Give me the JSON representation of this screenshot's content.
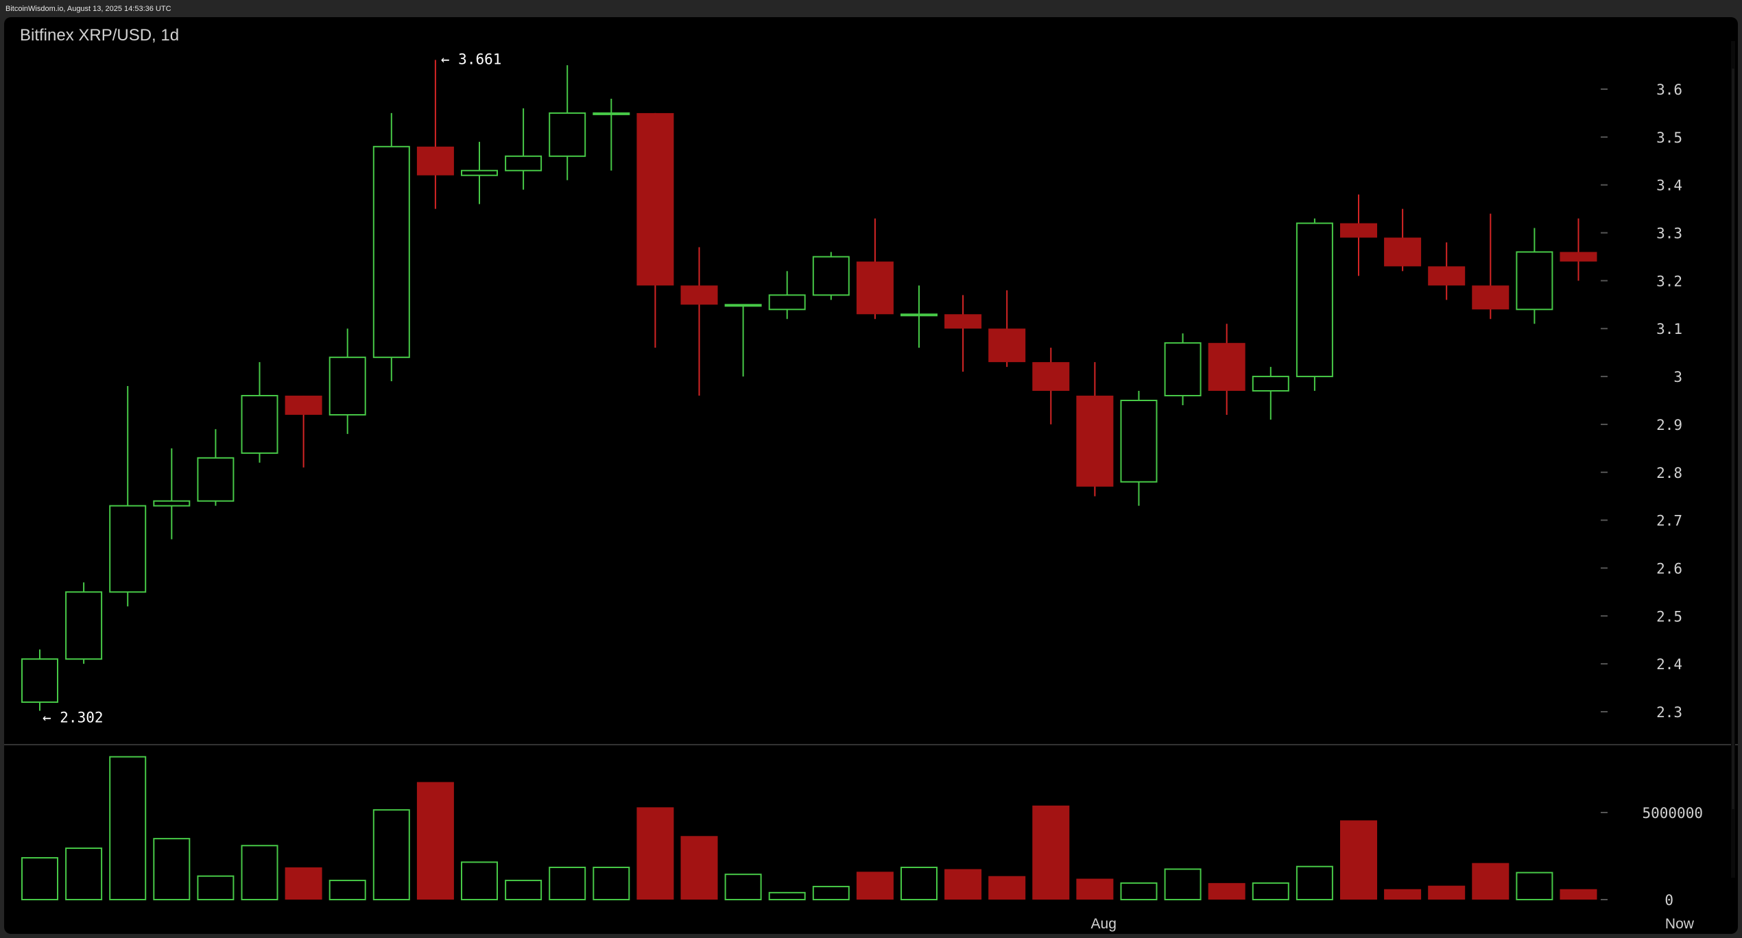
{
  "header": {
    "caption": "BitcoinWisdom.io, August 13, 2025 14:53:36 UTC"
  },
  "chart_data": {
    "type": "candlestick",
    "title": "Bitfinex XRP/USD, 1d",
    "colors": {
      "up": "#47c947",
      "down": "#a31313",
      "down_wick": "#d42525",
      "axis_text": "#d2d2d2",
      "tick": "#555555",
      "separator": "#333333",
      "annotation_text": "#ffffff"
    },
    "price_axis": {
      "ticks": [
        {
          "value": 3.6,
          "label": "3.6"
        },
        {
          "value": 3.5,
          "label": "3.5"
        },
        {
          "value": 3.4,
          "label": "3.4"
        },
        {
          "value": 3.3,
          "label": "3.3"
        },
        {
          "value": 3.2,
          "label": "3.2"
        },
        {
          "value": 3.1,
          "label": "3.1"
        },
        {
          "value": 3.0,
          "label": "3"
        },
        {
          "value": 2.9,
          "label": "2.9"
        },
        {
          "value": 2.8,
          "label": "2.8"
        },
        {
          "value": 2.7,
          "label": "2.7"
        },
        {
          "value": 2.6,
          "label": "2.6"
        },
        {
          "value": 2.5,
          "label": "2.5"
        },
        {
          "value": 2.4,
          "label": "2.4"
        },
        {
          "value": 2.3,
          "label": "2.3"
        }
      ],
      "range": [
        2.27,
        3.73
      ]
    },
    "volume_axis": {
      "ticks": [
        {
          "value": 5000000,
          "label": "5000000"
        },
        {
          "value": 0,
          "label": "0"
        }
      ],
      "range": [
        0,
        8400000
      ]
    },
    "x_labels": [
      {
        "index": 24.2,
        "label": "Aug"
      },
      {
        "index": 37.3,
        "label": "Now"
      }
    ],
    "annotations": {
      "high": {
        "text": "← 3.661",
        "value": 3.661,
        "index": 9
      },
      "low": {
        "text": "← 2.302",
        "value": 2.302,
        "index": 0
      }
    },
    "candles": [
      {
        "open": 2.32,
        "high": 2.43,
        "low": 2.302,
        "close": 2.41,
        "volume": 2400000
      },
      {
        "open": 2.41,
        "high": 2.57,
        "low": 2.4,
        "close": 2.55,
        "volume": 2950000
      },
      {
        "open": 2.55,
        "high": 2.98,
        "low": 2.52,
        "close": 2.73,
        "volume": 8200000
      },
      {
        "open": 2.73,
        "high": 2.85,
        "low": 2.66,
        "close": 2.74,
        "volume": 3500000
      },
      {
        "open": 2.74,
        "high": 2.89,
        "low": 2.73,
        "close": 2.83,
        "volume": 1350000
      },
      {
        "open": 2.84,
        "high": 3.03,
        "low": 2.82,
        "close": 2.96,
        "volume": 3100000
      },
      {
        "open": 2.96,
        "high": 2.96,
        "low": 2.81,
        "close": 2.92,
        "volume": 1850000
      },
      {
        "open": 2.92,
        "high": 3.1,
        "low": 2.88,
        "close": 3.04,
        "volume": 1100000
      },
      {
        "open": 3.04,
        "high": 3.55,
        "low": 2.99,
        "close": 3.48,
        "volume": 5150000
      },
      {
        "open": 3.48,
        "high": 3.661,
        "low": 3.35,
        "close": 3.42,
        "volume": 6750000
      },
      {
        "open": 3.42,
        "high": 3.49,
        "low": 3.36,
        "close": 3.43,
        "volume": 2150000
      },
      {
        "open": 3.43,
        "high": 3.56,
        "low": 3.39,
        "close": 3.46,
        "volume": 1100000
      },
      {
        "open": 3.46,
        "high": 3.65,
        "low": 3.41,
        "close": 3.55,
        "volume": 1850000
      },
      {
        "open": 3.55,
        "high": 3.58,
        "low": 3.43,
        "close": 3.55,
        "volume": 1850000
      },
      {
        "open": 3.55,
        "high": 3.55,
        "low": 3.06,
        "close": 3.19,
        "volume": 5300000
      },
      {
        "open": 3.19,
        "high": 3.27,
        "low": 2.96,
        "close": 3.15,
        "volume": 3650000
      },
      {
        "open": 3.15,
        "high": 3.15,
        "low": 3.0,
        "close": 3.15,
        "volume": 1450000
      },
      {
        "open": 3.14,
        "high": 3.22,
        "low": 3.12,
        "close": 3.17,
        "volume": 400000
      },
      {
        "open": 3.17,
        "high": 3.26,
        "low": 3.16,
        "close": 3.25,
        "volume": 750000
      },
      {
        "open": 3.24,
        "high": 3.33,
        "low": 3.12,
        "close": 3.13,
        "volume": 1600000
      },
      {
        "open": 3.13,
        "high": 3.19,
        "low": 3.06,
        "close": 3.13,
        "volume": 1850000
      },
      {
        "open": 3.13,
        "high": 3.17,
        "low": 3.01,
        "close": 3.1,
        "volume": 1750000
      },
      {
        "open": 3.1,
        "high": 3.18,
        "low": 3.02,
        "close": 3.03,
        "volume": 1350000
      },
      {
        "open": 3.03,
        "high": 3.06,
        "low": 2.9,
        "close": 2.97,
        "volume": 5400000
      },
      {
        "open": 2.96,
        "high": 3.03,
        "low": 2.75,
        "close": 2.77,
        "volume": 1200000
      },
      {
        "open": 2.78,
        "high": 2.97,
        "low": 2.73,
        "close": 2.95,
        "volume": 950000
      },
      {
        "open": 2.96,
        "high": 3.09,
        "low": 2.94,
        "close": 3.07,
        "volume": 1750000
      },
      {
        "open": 3.07,
        "high": 3.11,
        "low": 2.92,
        "close": 2.97,
        "volume": 950000
      },
      {
        "open": 2.97,
        "high": 3.02,
        "low": 2.91,
        "close": 3.0,
        "volume": 950000
      },
      {
        "open": 3.0,
        "high": 3.33,
        "low": 2.97,
        "close": 3.32,
        "volume": 1900000
      },
      {
        "open": 3.32,
        "high": 3.38,
        "low": 3.21,
        "close": 3.29,
        "volume": 4550000
      },
      {
        "open": 3.29,
        "high": 3.35,
        "low": 3.22,
        "close": 3.23,
        "volume": 600000
      },
      {
        "open": 3.23,
        "high": 3.28,
        "low": 3.16,
        "close": 3.19,
        "volume": 800000
      },
      {
        "open": 3.19,
        "high": 3.34,
        "low": 3.12,
        "close": 3.14,
        "volume": 2100000
      },
      {
        "open": 3.14,
        "high": 3.31,
        "low": 3.11,
        "close": 3.26,
        "volume": 1550000
      },
      {
        "open": 3.26,
        "high": 3.33,
        "low": 3.2,
        "close": 3.24,
        "volume": 600000
      }
    ]
  }
}
